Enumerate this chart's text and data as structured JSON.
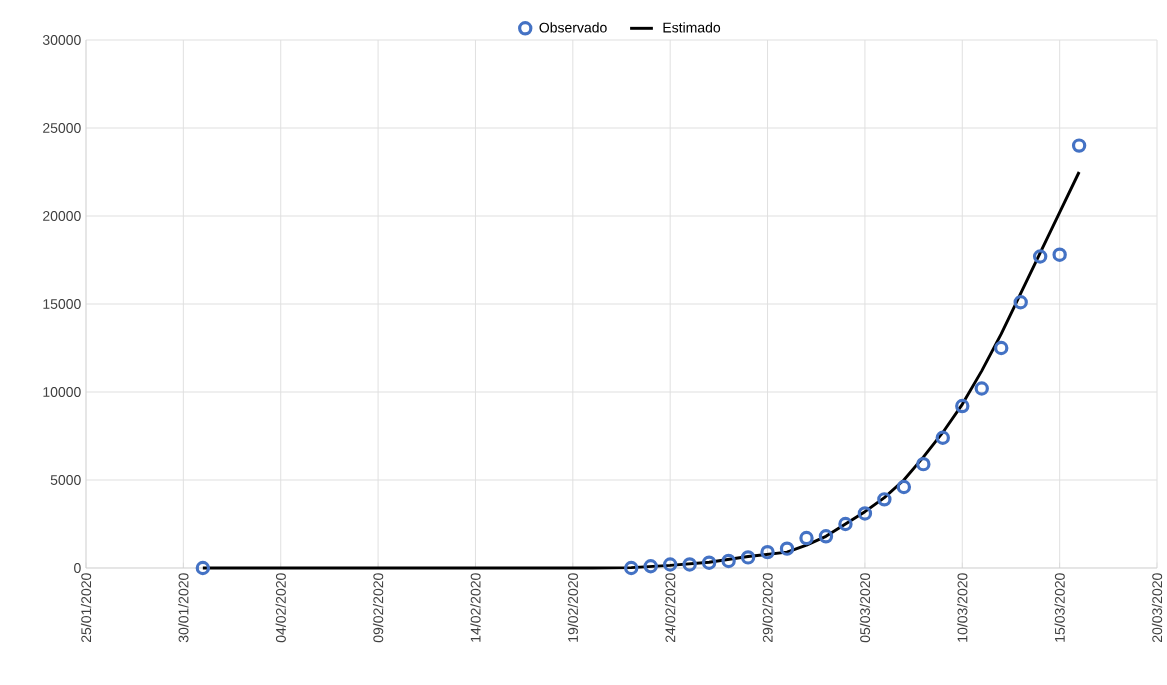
{
  "chart_data": {
    "type": "scatter",
    "series": [
      {
        "name": "Observado",
        "color": "#4472c4",
        "marker": "circle",
        "x": [
          "2020-01-31",
          "2020-02-22",
          "2020-02-23",
          "2020-02-24",
          "2020-02-25",
          "2020-02-26",
          "2020-02-27",
          "2020-02-28",
          "2020-02-29",
          "2020-03-01",
          "2020-03-02",
          "2020-03-03",
          "2020-03-04",
          "2020-03-05",
          "2020-03-06",
          "2020-03-07",
          "2020-03-08",
          "2020-03-09",
          "2020-03-10",
          "2020-03-11",
          "2020-03-12",
          "2020-03-13",
          "2020-03-14",
          "2020-03-15",
          "2020-03-16"
        ],
        "values": [
          0,
          0,
          100,
          200,
          200,
          300,
          400,
          600,
          900,
          1100,
          1700,
          1800,
          2500,
          3100,
          3900,
          4600,
          5900,
          7400,
          9200,
          10200,
          12500,
          15100,
          17700,
          17800,
          24000
        ]
      },
      {
        "name": "Estimado",
        "type": "line",
        "color": "#000000",
        "marker": "none",
        "line_style": "solid",
        "x": [
          "2020-01-31",
          "2020-02-20",
          "2020-02-22",
          "2020-02-24",
          "2020-02-26",
          "2020-02-28",
          "2020-03-01",
          "2020-03-02",
          "2020-03-03",
          "2020-03-04",
          "2020-03-05",
          "2020-03-06",
          "2020-03-07",
          "2020-03-08",
          "2020-03-09",
          "2020-03-10",
          "2020-03-11",
          "2020-03-12",
          "2020-03-13",
          "2020-03-14",
          "2020-03-15",
          "2020-03-16"
        ],
        "values": [
          0,
          0,
          20,
          150,
          330,
          650,
          900,
          1300,
          1800,
          2500,
          3200,
          4000,
          5000,
          6300,
          7700,
          9300,
          11200,
          13300,
          15600,
          17900,
          20200,
          22500
        ]
      }
    ],
    "xlim": [
      "2020-01-25",
      "2020-03-20"
    ],
    "xticks": [
      {
        "value": "2020-01-25",
        "label": "25/01/2020"
      },
      {
        "value": "2020-01-30",
        "label": "30/01/2020"
      },
      {
        "value": "2020-02-04",
        "label": "04/02/2020"
      },
      {
        "value": "2020-02-09",
        "label": "09/02/2020"
      },
      {
        "value": "2020-02-14",
        "label": "14/02/2020"
      },
      {
        "value": "2020-02-19",
        "label": "19/02/2020"
      },
      {
        "value": "2020-02-24",
        "label": "24/02/2020"
      },
      {
        "value": "2020-02-29",
        "label": "29/02/2020"
      },
      {
        "value": "2020-03-05",
        "label": "05/03/2020"
      },
      {
        "value": "2020-03-10",
        "label": "10/03/2020"
      },
      {
        "value": "2020-03-15",
        "label": "15/03/2020"
      },
      {
        "value": "2020-03-20",
        "label": "20/03/2020"
      }
    ],
    "ylim": [
      0,
      30000
    ],
    "yticks": [
      0,
      5000,
      10000,
      15000,
      20000,
      25000,
      30000
    ],
    "grid": true,
    "legend": "top"
  }
}
